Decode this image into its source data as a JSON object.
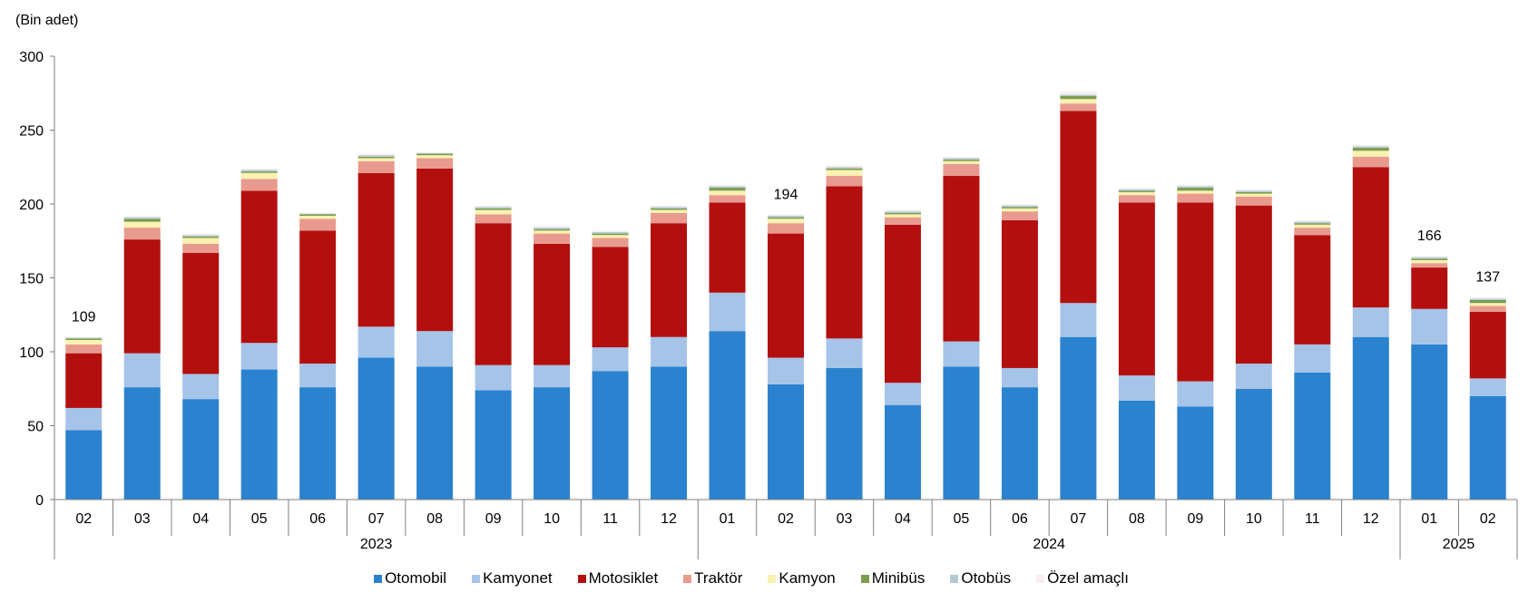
{
  "chart_data": {
    "type": "bar",
    "stacked": true,
    "unit_label": "(Bin adet)",
    "ylim": [
      0,
      300
    ],
    "yticks": [
      0,
      50,
      100,
      150,
      200,
      250,
      300
    ],
    "categories": [
      "02",
      "03",
      "04",
      "05",
      "06",
      "07",
      "08",
      "09",
      "10",
      "11",
      "12",
      "01",
      "02",
      "03",
      "04",
      "05",
      "06",
      "07",
      "08",
      "09",
      "10",
      "11",
      "12",
      "01",
      "02"
    ],
    "year_groups": [
      {
        "label": "2023",
        "count": 11
      },
      {
        "label": "2024",
        "count": 12
      },
      {
        "label": "2025",
        "count": 2
      }
    ],
    "total_labels": [
      {
        "index": 0,
        "text": "109"
      },
      {
        "index": 12,
        "text": "194"
      },
      {
        "index": 23,
        "text": "166"
      },
      {
        "index": 24,
        "text": "137"
      }
    ],
    "series": [
      {
        "name": "Otomobil",
        "color": "#2b82cf",
        "values": [
          47,
          76,
          68,
          88,
          76,
          96,
          90,
          74,
          76,
          87,
          90,
          114,
          78,
          89,
          64,
          90,
          76,
          110,
          67,
          63,
          75,
          86,
          110,
          105,
          70
        ]
      },
      {
        "name": "Kamyonet",
        "color": "#a6c4e8",
        "values": [
          15,
          23,
          17,
          18,
          16,
          21,
          24,
          17,
          15,
          16,
          20,
          26,
          18,
          20,
          15,
          17,
          13,
          23,
          17,
          17,
          17,
          19,
          20,
          24,
          12
        ]
      },
      {
        "name": "Motosiklet",
        "color": "#b30f0f",
        "values": [
          37,
          77,
          82,
          103,
          90,
          104,
          110,
          96,
          82,
          68,
          77,
          61,
          84,
          103,
          107,
          112,
          100,
          130,
          117,
          121,
          107,
          74,
          95,
          28,
          45
        ]
      },
      {
        "name": "Traktör",
        "color": "#e89a8f",
        "values": [
          6,
          8,
          6,
          8,
          8,
          8,
          7,
          6,
          7,
          6,
          7,
          5,
          7,
          7,
          5,
          8,
          6,
          5,
          5,
          6,
          6,
          5,
          7,
          3,
          4
        ]
      },
      {
        "name": "Kamyon",
        "color": "#fbf1b0",
        "values": [
          3,
          4,
          4,
          4,
          2,
          2,
          2,
          3,
          2,
          2,
          2,
          3,
          3,
          4,
          2,
          2,
          2,
          3,
          2,
          2,
          2,
          2,
          4,
          2,
          2
        ]
      },
      {
        "name": "Minibüs",
        "color": "#7a9d4f",
        "values": [
          1,
          2,
          1,
          1,
          1,
          1,
          1,
          1,
          1,
          1,
          1,
          2,
          1,
          1,
          1,
          1,
          1,
          2,
          1,
          2,
          1,
          1,
          2,
          1,
          2
        ]
      },
      {
        "name": "Otobüs",
        "color": "#b3cad2",
        "values": [
          0.5,
          1,
          1,
          1,
          0.5,
          1,
          0.5,
          1,
          1,
          1,
          1,
          1,
          1,
          1,
          1,
          1,
          1,
          1,
          1,
          1,
          1,
          1,
          1,
          1,
          1
        ]
      },
      {
        "name": "Özel amaçlı",
        "color": "#f7efef",
        "values": [
          0.5,
          1,
          1,
          1,
          0.5,
          1,
          0.5,
          1,
          1,
          1,
          1,
          1,
          1,
          1,
          1,
          1,
          1,
          2,
          1,
          1,
          1,
          1,
          1,
          1,
          1
        ]
      }
    ]
  }
}
